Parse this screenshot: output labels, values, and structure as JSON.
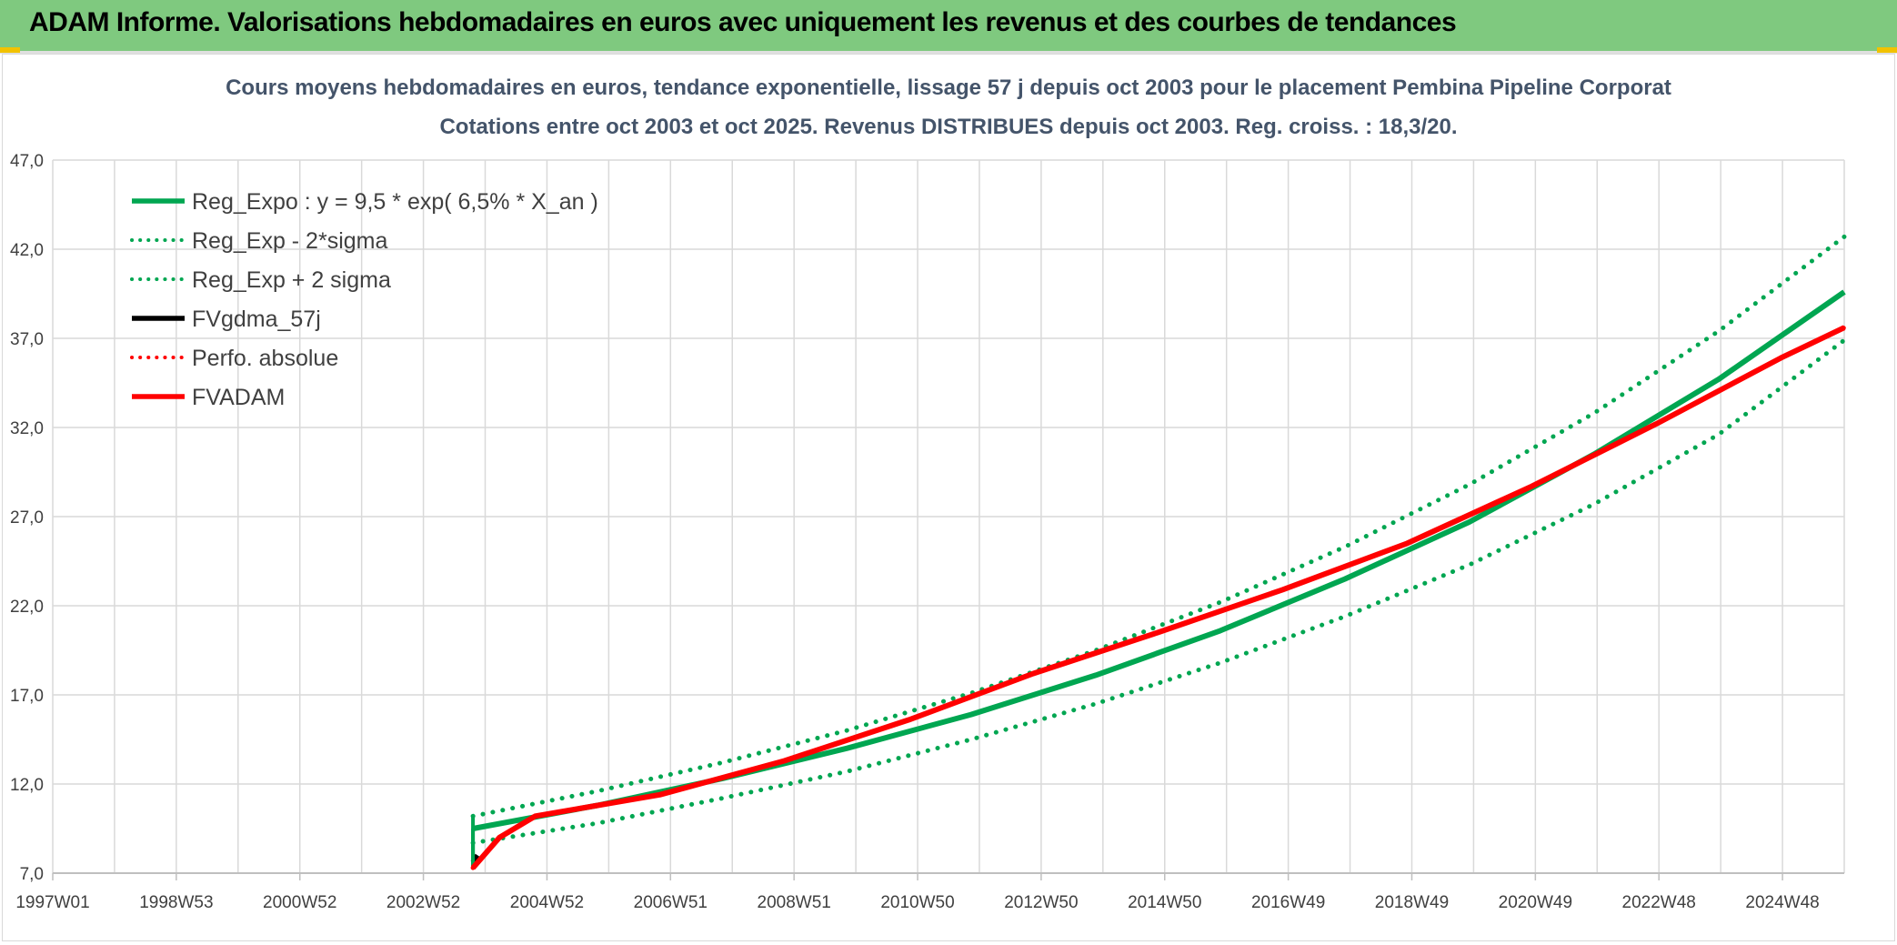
{
  "banner": {
    "title": "ADAM Informe. Valorisations hebdomadaires en euros avec uniquement les revenus et des courbes de tendances",
    "color": "#7fc97f"
  },
  "chart_data": {
    "type": "line",
    "title": "Cours moyens hebdomadaires en euros, tendance exponentielle, lissage 57 j depuis oct 2003 pour le placement Pembina Pipeline Corporat",
    "subtitle": "Cotations entre oct 2003 et oct 2025. Revenus DISTRIBUES depuis oct 2003. Reg. croiss. : 18,3/20.",
    "xlabel": "",
    "ylabel": "",
    "x_ticks": [
      "1997W01",
      "1998W53",
      "2000W52",
      "2002W52",
      "2004W52",
      "2006W51",
      "2008W51",
      "2010W50",
      "2012W50",
      "2014W50",
      "2016W49",
      "2018W49",
      "2020W49",
      "2022W48",
      "2024W48"
    ],
    "y_ticks": [
      "7,0",
      "12,0",
      "17,0",
      "22,0",
      "27,0",
      "32,0",
      "37,0",
      "42,0",
      "47,0"
    ],
    "ylim": [
      7,
      47
    ],
    "xlim": [
      "1997W01",
      "2025W41"
    ],
    "grid": true,
    "legend_position": "top-left",
    "series": [
      {
        "name": "Reg_Expo : y = 9,5 * exp( 6,5% *  X_an )",
        "color": "#00a651",
        "style": "solid",
        "x": [
          "2003W40",
          "2005W40",
          "2007W40",
          "2009W40",
          "2011W40",
          "2013W40",
          "2015W40",
          "2017W40",
          "2019W40",
          "2021W40",
          "2023W40",
          "2025W41"
        ],
        "values": [
          9.5,
          10.8,
          12.3,
          14.0,
          15.9,
          18.1,
          20.6,
          23.5,
          26.7,
          30.5,
          34.7,
          39.6
        ]
      },
      {
        "name": "Reg_Exp - 2*sigma",
        "color": "#00a651",
        "style": "dotted",
        "x": [
          "2003W40",
          "2005W40",
          "2007W40",
          "2009W40",
          "2011W40",
          "2013W40",
          "2015W40",
          "2017W40",
          "2019W40",
          "2021W40",
          "2023W40",
          "2025W41"
        ],
        "values": [
          8.7,
          9.8,
          11.2,
          12.7,
          14.5,
          16.5,
          18.8,
          21.4,
          24.3,
          27.7,
          31.6,
          36.9
        ]
      },
      {
        "name": "Reg_Exp + 2 sigma",
        "color": "#00a651",
        "style": "dotted",
        "x": [
          "2003W40",
          "2005W40",
          "2007W40",
          "2009W40",
          "2011W40",
          "2013W40",
          "2015W40",
          "2017W40",
          "2019W40",
          "2021W40",
          "2023W40",
          "2025W41"
        ],
        "values": [
          10.2,
          11.6,
          13.2,
          15.0,
          17.1,
          19.5,
          22.2,
          25.3,
          28.8,
          32.8,
          37.4,
          42.7
        ]
      },
      {
        "name": "FVgdma_57j",
        "color": "#000000",
        "style": "solid",
        "x": [
          "2003W40",
          "2003W44"
        ],
        "values": [
          7.6,
          8.0
        ]
      },
      {
        "name": "Perfo. absolue",
        "color": "#ff0000",
        "style": "dotted",
        "x": [
          "2003W40",
          "2004W10",
          "2004W40",
          "2006W40",
          "2008W40",
          "2010W40",
          "2012W40",
          "2014W40",
          "2016W40",
          "2018W40",
          "2020W40",
          "2022W40",
          "2024W40",
          "2025W41"
        ],
        "values": [
          7.3,
          9.0,
          10.2,
          11.4,
          13.3,
          15.6,
          18.2,
          20.5,
          22.9,
          25.5,
          28.7,
          32.2,
          35.9,
          37.6
        ]
      },
      {
        "name": "FVADAM",
        "color": "#ff0000",
        "style": "solid",
        "x": [
          "2003W40",
          "2004W10",
          "2004W40",
          "2006W40",
          "2008W40",
          "2010W40",
          "2012W40",
          "2014W40",
          "2016W40",
          "2018W40",
          "2020W40",
          "2022W40",
          "2024W40",
          "2025W41"
        ],
        "values": [
          7.3,
          9.0,
          10.2,
          11.4,
          13.3,
          15.6,
          18.2,
          20.5,
          22.9,
          25.5,
          28.7,
          32.2,
          35.9,
          37.6
        ]
      }
    ]
  }
}
